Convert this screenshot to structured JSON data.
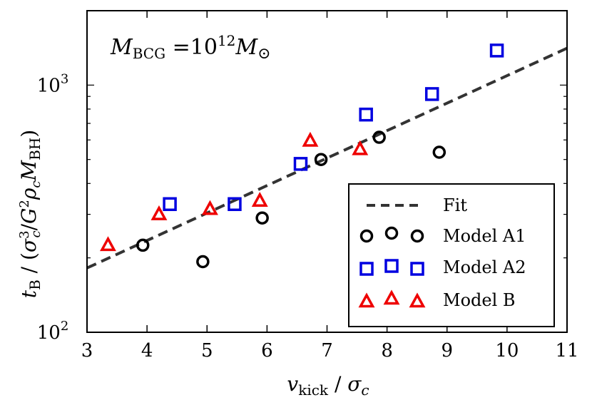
{
  "chart_data": {
    "type": "scatter",
    "title": "",
    "annotation": "M_BCG = 10^12 M_⊙",
    "xlabel": "v_kick / σ_c",
    "ylabel": "t_B / (σ_c^3 / G^2 ρ_c M_BH)",
    "xlim": [
      3,
      11
    ],
    "ylim": [
      100,
      2000
    ],
    "yscale": "log",
    "x_ticks": [
      "3",
      "4",
      "5",
      "6",
      "7",
      "8",
      "9",
      "10",
      "11"
    ],
    "y_ticks": [
      {
        "value": 100,
        "label": "10^2"
      },
      {
        "value": 1000,
        "label": "10^3"
      }
    ],
    "legend_position": "lower-right",
    "fit": {
      "name": "Fit",
      "x": [
        3,
        11
      ],
      "y": [
        182,
        1410
      ],
      "color": "#333333",
      "style": "dashed"
    },
    "series": [
      {
        "name": "Model A1",
        "marker": "circle",
        "color": "#000000",
        "x": [
          3.93,
          4.93,
          5.92,
          6.9,
          7.87,
          8.87
        ],
        "y": [
          225,
          193,
          290,
          500,
          615,
          535
        ]
      },
      {
        "name": "Model A2",
        "marker": "square",
        "color": "#0000e0",
        "x": [
          4.38,
          5.46,
          6.56,
          7.65,
          8.75,
          9.83
        ],
        "y": [
          330,
          330,
          480,
          760,
          920,
          1380
        ]
      },
      {
        "name": "Model B",
        "marker": "triangle",
        "color": "#ee0000",
        "x": [
          3.35,
          4.2,
          5.05,
          5.88,
          6.72,
          7.55
        ],
        "y": [
          225,
          300,
          315,
          340,
          595,
          550
        ]
      }
    ]
  }
}
